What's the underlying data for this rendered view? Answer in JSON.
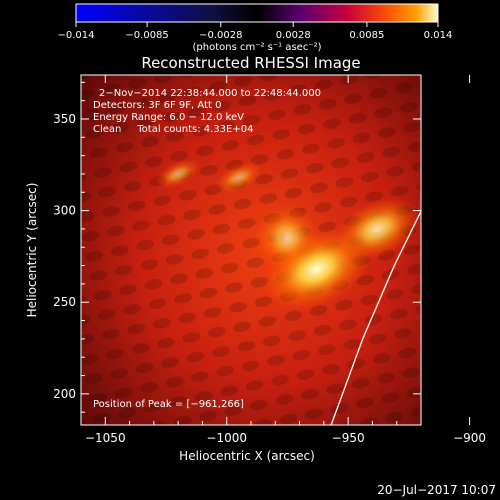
{
  "chart_data": {
    "type": "heatmap",
    "title": "Reconstructed RHESSI Image",
    "xlabel": "Heliocentric X (arcsec)",
    "ylabel": "Heliocentric Y (arcsec)",
    "xlim": [
      -1060,
      -920
    ],
    "ylim": [
      183,
      374
    ],
    "x_ticks": [
      -1050,
      -1000,
      -950,
      -900
    ],
    "x_tick_labels": [
      "−1050",
      "−1000",
      "−950",
      "−900"
    ],
    "y_ticks": [
      200,
      250,
      300,
      350
    ],
    "y_tick_labels": [
      "200",
      "250",
      "300",
      "350"
    ],
    "colorbar": {
      "range": [
        -0.014,
        0.014
      ],
      "ticks": [
        -0.014,
        -0.0085,
        -0.0028,
        0.0028,
        0.0085,
        0.014
      ],
      "tick_labels": [
        "−0.014",
        "−0.0085",
        "−0.0028",
        "0.0028",
        "0.0085",
        "0.014"
      ],
      "units_line": "(photons cm⁻² s⁻¹ asec⁻²)",
      "colormap": [
        "#0000ff",
        "#000000",
        "#5a006e",
        "#c8003c",
        "#ff5000",
        "#ffa000",
        "#ffffd0"
      ]
    },
    "annotations": [
      "2−Nov−2014 22:38:44.000 to 22:48:44.000",
      "Detectors: 3F 6F 9F, Att 0",
      "Energy Range: 6.0 − 12.0 keV",
      "Clean     Total counts: 4.33E+04"
    ],
    "peak_label": "Position of Peak = [−961,266]",
    "peak": [
      -961,
      266
    ],
    "sources": [
      {
        "x": -963,
        "y": 268,
        "rx": 13,
        "ry": 11,
        "intensity": 1.0
      },
      {
        "x": -938,
        "y": 290,
        "rx": 12,
        "ry": 10,
        "intensity": 0.75
      },
      {
        "x": -975,
        "y": 285,
        "rx": 10,
        "ry": 14,
        "intensity": 0.55
      },
      {
        "x": -1020,
        "y": 320,
        "rx": 9,
        "ry": 6,
        "intensity": 0.35
      },
      {
        "x": -995,
        "y": 318,
        "rx": 10,
        "ry": 7,
        "intensity": 0.3
      }
    ],
    "limb_curve": [
      [
        -957,
        183
      ],
      [
        -944,
        230
      ],
      [
        -931,
        270
      ],
      [
        -918,
        305
      ],
      [
        -903,
        340
      ],
      [
        -887,
        374
      ]
    ],
    "grid": false
  },
  "footer": {
    "timestamp": "20−Jul−2017 10:07"
  }
}
